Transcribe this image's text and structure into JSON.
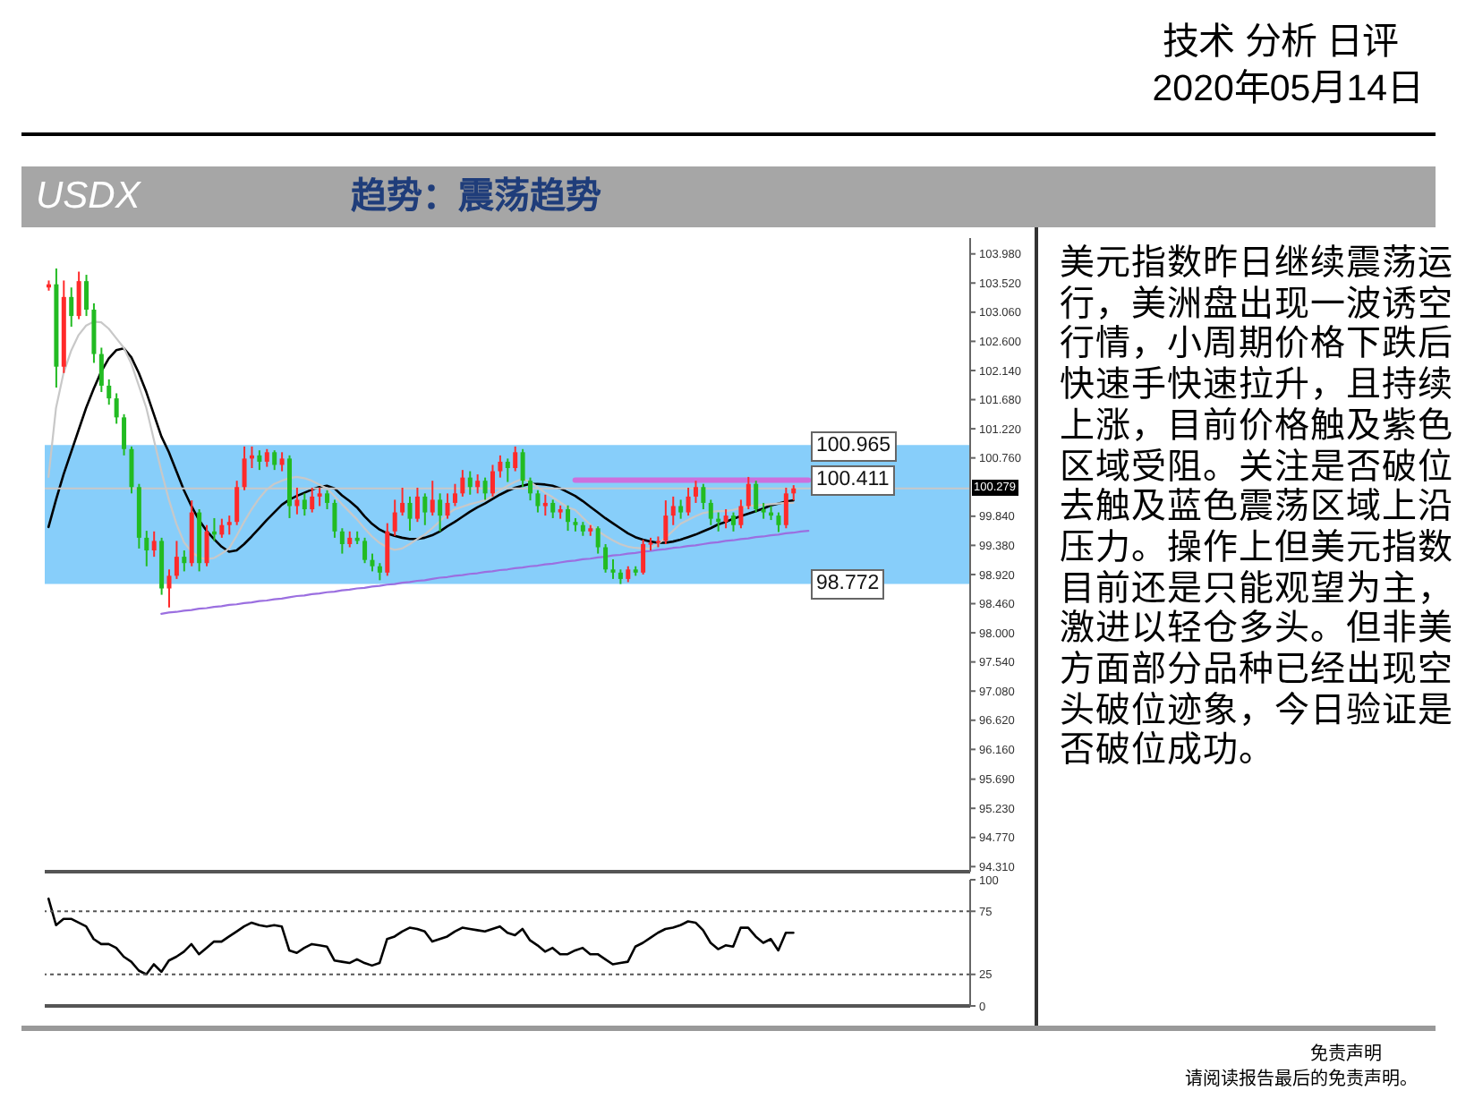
{
  "chart_data": [
    {
      "type": "candlestick",
      "title": "USDX",
      "subtitle": "趋势：震荡趋势",
      "categories": [
        null,
        null,
        null,
        null,
        null,
        null,
        null,
        null,
        null,
        null,
        null,
        null,
        null,
        null,
        null,
        null,
        null,
        null,
        null,
        null,
        null,
        null,
        null,
        null,
        null,
        null,
        null,
        null,
        null,
        null,
        null,
        null,
        null,
        null,
        null,
        null,
        null,
        null,
        null,
        null,
        null,
        null,
        null,
        null,
        null,
        null,
        null,
        null,
        null,
        null,
        null,
        null,
        null,
        null,
        null,
        null,
        null,
        null,
        null,
        null,
        null,
        null,
        null,
        null,
        null,
        null,
        null,
        null,
        null,
        null,
        null,
        null,
        null,
        null,
        null,
        null,
        null,
        null,
        null,
        null,
        null,
        null,
        null,
        null,
        null,
        null,
        null,
        null,
        null,
        null,
        null,
        null,
        null,
        null,
        null,
        null,
        null,
        null,
        null,
        null,
        null,
        null,
        null,
        null,
        null,
        null,
        null,
        null,
        null,
        null,
        null,
        null,
        null,
        null,
        null,
        null,
        null,
        null,
        null,
        null,
        null,
        null,
        null
      ],
      "ohlc": [
        [
          103.45,
          103.56,
          103.4,
          103.5
        ],
        [
          103.5,
          103.75,
          101.87,
          102.2
        ],
        [
          102.2,
          103.56,
          102.1,
          103.3
        ],
        [
          103.3,
          103.45,
          102.83,
          103.0
        ],
        [
          103.0,
          103.7,
          102.95,
          103.55
        ],
        [
          103.55,
          103.65,
          103.0,
          103.1
        ],
        [
          103.1,
          103.2,
          102.26,
          102.4
        ],
        [
          102.4,
          102.5,
          101.8,
          101.9
        ],
        [
          101.9,
          102.0,
          101.6,
          101.7
        ],
        [
          101.7,
          101.78,
          101.3,
          101.4
        ],
        [
          101.4,
          101.45,
          100.8,
          100.9
        ],
        [
          100.9,
          100.94,
          100.2,
          100.3
        ],
        [
          100.3,
          100.35,
          99.33,
          99.5
        ],
        [
          99.5,
          99.61,
          99.05,
          99.3
        ],
        [
          99.3,
          99.6,
          99.2,
          99.45
        ],
        [
          99.45,
          99.5,
          98.6,
          98.7
        ],
        [
          98.7,
          99.0,
          98.4,
          98.9
        ],
        [
          98.9,
          99.45,
          98.85,
          99.2
        ],
        [
          99.2,
          99.3,
          98.97,
          99.1
        ],
        [
          99.1,
          100.09,
          99.05,
          99.9
        ],
        [
          99.9,
          99.95,
          98.97,
          99.1
        ],
        [
          99.1,
          99.7,
          99.05,
          99.6
        ],
        [
          99.6,
          99.81,
          99.45,
          99.55
        ],
        [
          99.55,
          99.8,
          99.5,
          99.7
        ],
        [
          99.7,
          99.85,
          99.55,
          99.75
        ],
        [
          99.75,
          100.4,
          99.7,
          100.3
        ],
        [
          100.3,
          100.94,
          100.25,
          100.75
        ],
        [
          100.75,
          100.94,
          100.6,
          100.8
        ],
        [
          100.8,
          100.88,
          100.57,
          100.7
        ],
        [
          100.7,
          100.9,
          100.62,
          100.85
        ],
        [
          100.85,
          100.88,
          100.57,
          100.65
        ],
        [
          100.65,
          100.85,
          100.55,
          100.75
        ],
        [
          100.75,
          100.8,
          99.81,
          100.0
        ],
        [
          100.0,
          100.29,
          99.87,
          100.1
        ],
        [
          100.1,
          100.2,
          99.85,
          99.95
        ],
        [
          99.95,
          100.29,
          99.9,
          100.15
        ],
        [
          100.15,
          100.29,
          100.0,
          100.2
        ],
        [
          100.2,
          100.25,
          99.95,
          100.05
        ],
        [
          100.05,
          100.1,
          99.5,
          99.6
        ],
        [
          99.6,
          99.65,
          99.25,
          99.4
        ],
        [
          99.4,
          99.6,
          99.35,
          99.5
        ],
        [
          99.5,
          99.6,
          99.4,
          99.45
        ],
        [
          99.45,
          99.5,
          99.1,
          99.15
        ],
        [
          99.15,
          99.25,
          98.97,
          99.05
        ],
        [
          99.05,
          99.1,
          98.83,
          98.95
        ],
        [
          98.95,
          99.73,
          98.9,
          99.6
        ],
        [
          99.6,
          100.1,
          99.53,
          99.9
        ],
        [
          99.9,
          100.29,
          99.85,
          100.05
        ],
        [
          100.05,
          100.15,
          99.61,
          99.8
        ],
        [
          99.8,
          100.29,
          99.75,
          100.15
        ],
        [
          100.15,
          100.2,
          99.7,
          99.9
        ],
        [
          99.9,
          100.4,
          99.85,
          100.1
        ],
        [
          100.1,
          100.2,
          99.6,
          99.85
        ],
        [
          99.85,
          100.2,
          99.8,
          100.05
        ],
        [
          100.05,
          100.35,
          100.0,
          100.2
        ],
        [
          100.2,
          100.57,
          100.15,
          100.45
        ],
        [
          100.45,
          100.55,
          100.18,
          100.3
        ],
        [
          100.3,
          100.5,
          100.2,
          100.4
        ],
        [
          100.4,
          100.45,
          100.1,
          100.2
        ],
        [
          100.2,
          100.65,
          100.15,
          100.55
        ],
        [
          100.55,
          100.8,
          100.45,
          100.7
        ],
        [
          100.7,
          100.75,
          100.38,
          100.6
        ],
        [
          100.6,
          100.94,
          100.55,
          100.85
        ],
        [
          100.85,
          100.9,
          100.3,
          100.4
        ],
        [
          100.4,
          100.45,
          100.09,
          100.2
        ],
        [
          100.2,
          100.25,
          99.9,
          100.0
        ],
        [
          100.0,
          100.18,
          99.85,
          100.05
        ],
        [
          100.05,
          100.1,
          99.81,
          99.9
        ],
        [
          99.9,
          100.01,
          99.8,
          99.95
        ],
        [
          99.95,
          100.01,
          99.61,
          99.75
        ],
        [
          99.75,
          99.81,
          99.6,
          99.7
        ],
        [
          99.7,
          99.75,
          99.53,
          99.6
        ],
        [
          99.6,
          99.7,
          99.53,
          99.65
        ],
        [
          99.65,
          99.68,
          99.25,
          99.35
        ],
        [
          99.35,
          99.4,
          98.95,
          99.0
        ],
        [
          99.0,
          99.16,
          98.85,
          98.95
        ],
        [
          98.95,
          99.0,
          98.77,
          98.85
        ],
        [
          98.85,
          99.05,
          98.8,
          99.0
        ],
        [
          99.0,
          99.05,
          98.9,
          98.95
        ],
        [
          98.95,
          99.47,
          98.92,
          99.4
        ],
        [
          99.4,
          99.5,
          99.3,
          99.42
        ],
        [
          99.42,
          99.52,
          99.35,
          99.45
        ],
        [
          99.45,
          100.09,
          99.4,
          99.85
        ],
        [
          99.85,
          100.15,
          99.7,
          100.0
        ],
        [
          100.0,
          100.1,
          99.8,
          99.9
        ],
        [
          99.9,
          100.29,
          99.85,
          100.15
        ],
        [
          100.15,
          100.4,
          100.05,
          100.3
        ],
        [
          100.3,
          100.35,
          99.95,
          100.05
        ],
        [
          100.05,
          100.1,
          99.7,
          99.8
        ],
        [
          99.8,
          99.9,
          99.6,
          99.75
        ],
        [
          99.75,
          99.95,
          99.65,
          99.85
        ],
        [
          99.85,
          99.9,
          99.6,
          99.7
        ],
        [
          99.7,
          100.1,
          99.65,
          100.0
        ],
        [
          100.0,
          100.46,
          99.95,
          100.35
        ],
        [
          100.35,
          100.4,
          99.9,
          99.95
        ],
        [
          99.95,
          100.05,
          99.8,
          99.9
        ],
        [
          99.9,
          100.0,
          99.78,
          99.85
        ],
        [
          99.85,
          99.9,
          99.59,
          99.7
        ],
        [
          99.7,
          100.29,
          99.65,
          100.2
        ],
        [
          100.2,
          100.33,
          100.09,
          100.279
        ],
        null,
        null,
        null,
        null,
        null,
        null,
        null,
        null,
        null,
        null,
        null,
        null,
        null,
        null,
        null,
        null,
        null,
        null,
        null,
        null,
        null,
        null,
        null
      ],
      "colors": [
        "#ff2a2a",
        "#22bb22",
        "#ff2a2a",
        "#22bb22",
        "#ff2a2a",
        "#22bb22",
        "#22bb22",
        "#22bb22",
        "#22bb22",
        "#22bb22",
        "#22bb22",
        "#22bb22",
        "#22bb22",
        "#22bb22",
        "#ff2a2a",
        "#22bb22",
        "#ff2a2a",
        "#ff2a2a",
        "#22bb22",
        "#ff2a2a",
        "#22bb22",
        "#ff2a2a",
        "#22bb22",
        "#ff2a2a",
        "#ff2a2a",
        "#ff2a2a",
        "#ff2a2a",
        "#ff2a2a",
        "#22bb22",
        "#ff2a2a",
        "#22bb22",
        "#ff2a2a",
        "#22bb22",
        "#ff2a2a",
        "#22bb22",
        "#ff2a2a",
        "#ff2a2a",
        "#22bb22",
        "#22bb22",
        "#22bb22",
        "#ff2a2a",
        "#22bb22",
        "#22bb22",
        "#22bb22",
        "#22bb22",
        "#ff2a2a",
        "#ff2a2a",
        "#ff2a2a",
        "#22bb22",
        "#ff2a2a",
        "#22bb22",
        "#ff2a2a",
        "#22bb22",
        "#ff2a2a",
        "#ff2a2a",
        "#ff2a2a",
        "#22bb22",
        "#ff2a2a",
        "#22bb22",
        "#ff2a2a",
        "#ff2a2a",
        "#22bb22",
        "#ff2a2a",
        "#22bb22",
        "#22bb22",
        "#22bb22",
        "#ff2a2a",
        "#22bb22",
        "#ff2a2a",
        "#22bb22",
        "#22bb22",
        "#22bb22",
        "#ff2a2a",
        "#22bb22",
        "#22bb22",
        "#22bb22",
        "#22bb22",
        "#ff2a2a",
        "#22bb22",
        "#ff2a2a",
        "#ff2a2a",
        "#ff2a2a",
        "#ff2a2a",
        "#ff2a2a",
        "#22bb22",
        "#ff2a2a",
        "#ff2a2a",
        "#22bb22",
        "#22bb22",
        "#22bb22",
        "#ff2a2a",
        "#22bb22",
        "#ff2a2a",
        "#ff2a2a",
        "#22bb22",
        "#22bb22",
        "#22bb22",
        "#22bb22",
        "#ff2a2a",
        "#ff2a2a",
        null,
        null,
        null,
        null,
        null,
        null,
        null,
        null,
        null,
        null,
        null,
        null,
        null,
        null,
        null,
        null,
        null,
        null,
        null,
        null,
        null,
        null,
        null
      ],
      "series": [
        {
          "type": "line",
          "color": "#000000",
          "values": [
            99.67,
            100.1,
            100.5,
            100.85,
            101.2,
            101.55,
            101.85,
            102.12,
            102.33,
            102.46,
            102.49,
            102.35,
            102.1,
            101.8,
            101.45,
            101.1,
            100.85,
            100.55,
            100.25,
            100.0,
            99.78,
            99.61,
            99.48,
            99.36,
            99.28,
            99.3,
            99.4,
            99.52,
            99.65,
            99.78,
            99.9,
            100.02,
            100.1,
            100.16,
            100.21,
            100.26,
            100.3,
            100.32,
            100.28,
            100.17,
            100.08,
            99.98,
            99.84,
            99.72,
            99.63,
            99.57,
            99.53,
            99.5,
            99.48,
            99.48,
            99.5,
            99.54,
            99.6,
            99.68,
            99.75,
            99.83,
            99.91,
            99.98,
            100.04,
            100.11,
            100.18,
            100.24,
            100.29,
            100.32,
            100.35,
            100.35,
            100.34,
            100.32,
            100.28,
            100.22,
            100.16,
            100.08,
            99.99,
            99.9,
            99.81,
            99.73,
            99.65,
            99.57,
            99.51,
            99.47,
            99.44,
            99.42,
            99.42,
            99.44,
            99.47,
            99.51,
            99.55,
            99.6,
            99.65,
            99.71,
            99.75,
            99.8,
            99.84,
            99.88,
            99.92,
            99.96,
            100.01,
            100.04,
            100.07,
            100.09,
            null,
            null,
            null,
            null,
            null,
            null,
            null,
            null,
            null,
            null,
            null,
            null,
            null,
            null,
            null,
            null,
            null,
            null,
            null,
            null,
            null,
            null,
            null
          ]
        },
        {
          "type": "line",
          "color": "#c8c8c8",
          "values": [
            100.46,
            101.55,
            102.1,
            102.45,
            102.7,
            102.85,
            102.91,
            102.9,
            102.8,
            102.65,
            102.5,
            102.25,
            101.9,
            101.55,
            101.05,
            100.55,
            100.1,
            99.72,
            99.43,
            99.28,
            99.19,
            99.16,
            99.18,
            99.25,
            99.33,
            99.53,
            99.75,
            99.95,
            100.12,
            100.26,
            100.35,
            100.4,
            100.44,
            100.46,
            100.44,
            100.4,
            100.34,
            100.28,
            100.16,
            100.03,
            99.91,
            99.79,
            99.65,
            99.52,
            99.42,
            99.35,
            99.31,
            99.33,
            99.4,
            99.48,
            99.55,
            99.65,
            99.76,
            99.87,
            99.95,
            99.99,
            100.03,
            100.06,
            100.09,
            100.16,
            100.25,
            100.32,
            100.38,
            100.43,
            100.38,
            100.3,
            100.21,
            100.14,
            100.06,
            99.98,
            99.94,
            99.82,
            99.71,
            99.61,
            99.53,
            99.46,
            99.4,
            99.36,
            99.34,
            99.33,
            99.33,
            99.4,
            99.5,
            99.61,
            99.72,
            99.78,
            99.84,
            99.89,
            99.91,
            99.92,
            99.92,
            99.94,
            99.97,
            100.0,
            100.01,
            100.02,
            100.03,
            100.04,
            100.05,
            100.05,
            null,
            null,
            null,
            null,
            null,
            null,
            null,
            null,
            null,
            null,
            null,
            null,
            null,
            null,
            null,
            null,
            null,
            null,
            null,
            null,
            null,
            null,
            null
          ]
        },
        {
          "type": "line",
          "color": "#9b6fe0",
          "values": [
            null,
            null,
            null,
            null,
            null,
            null,
            null,
            null,
            null,
            null,
            null,
            null,
            null,
            null,
            null,
            98.3,
            98.32,
            98.33,
            98.35,
            98.36,
            98.38,
            98.39,
            98.41,
            98.42,
            98.44,
            98.45,
            98.47,
            98.48,
            98.5,
            98.51,
            98.53,
            98.54,
            98.56,
            98.58,
            98.59,
            98.61,
            98.62,
            98.64,
            98.65,
            98.67,
            98.68,
            98.7,
            98.71,
            98.73,
            98.74,
            98.76,
            98.77,
            98.79,
            98.8,
            98.82,
            98.83,
            98.85,
            98.87,
            98.88,
            98.9,
            98.91,
            98.93,
            98.94,
            98.96,
            98.97,
            98.99,
            99.0,
            99.02,
            99.03,
            99.05,
            99.06,
            99.08,
            99.09,
            99.11,
            99.13,
            99.14,
            99.16,
            99.17,
            99.19,
            99.2,
            99.22,
            99.23,
            99.25,
            99.26,
            99.28,
            99.29,
            99.31,
            99.32,
            99.34,
            99.35,
            99.37,
            99.38,
            99.4,
            99.42,
            99.43,
            99.45,
            99.46,
            99.48,
            99.49,
            99.51,
            99.52,
            99.54,
            99.55,
            99.57,
            99.58,
            99.6,
            99.61,
            null,
            null,
            null,
            null,
            null,
            null,
            null,
            null,
            null,
            null,
            null,
            null,
            null,
            null,
            null,
            null,
            null,
            null,
            null,
            null,
            null
          ]
        },
        {
          "type": "line",
          "color": "#cc6fdd",
          "values": [
            null,
            null,
            null,
            null,
            null,
            null,
            null,
            null,
            null,
            null,
            null,
            null,
            null,
            null,
            null,
            null,
            null,
            null,
            null,
            null,
            null,
            null,
            null,
            null,
            null,
            null,
            null,
            null,
            null,
            null,
            null,
            null,
            null,
            null,
            null,
            null,
            null,
            null,
            null,
            null,
            null,
            null,
            null,
            null,
            null,
            null,
            null,
            null,
            null,
            null,
            null,
            null,
            null,
            null,
            null,
            null,
            null,
            null,
            null,
            null,
            null,
            null,
            null,
            null,
            null,
            null,
            null,
            null,
            null,
            null,
            100.411,
            100.411,
            100.411,
            100.411,
            100.411,
            100.411,
            100.411,
            100.411,
            100.411,
            100.411,
            100.411,
            100.411,
            100.411,
            100.411,
            100.411,
            100.411,
            100.411,
            100.411,
            100.411,
            100.411,
            100.411,
            100.411,
            100.411,
            100.411,
            100.411,
            100.411,
            100.411,
            100.411,
            100.411,
            100.411,
            100.411,
            100.411,
            null,
            null,
            null,
            null,
            null,
            null,
            null,
            null,
            null,
            null,
            null,
            null,
            null,
            null,
            null,
            null,
            null,
            null,
            null,
            null,
            null
          ]
        }
      ],
      "ylim": [
        94.23,
        104.23
      ],
      "yticks": [
        {
          "value": 103.98,
          "label": "103.980"
        },
        {
          "value": 103.52,
          "label": "103.520"
        },
        {
          "value": 103.06,
          "label": "103.060"
        },
        {
          "value": 102.6,
          "label": "102.600"
        },
        {
          "value": 102.14,
          "label": "102.140"
        },
        {
          "value": 101.68,
          "label": "101.680"
        },
        {
          "value": 101.22,
          "label": "101.220"
        },
        {
          "value": 100.76,
          "label": "100.760"
        },
        {
          "value": 99.84,
          "label": "99.840"
        },
        {
          "value": 99.38,
          "label": "99.380"
        },
        {
          "value": 98.92,
          "label": "98.920"
        },
        {
          "value": 98.46,
          "label": "98.460"
        },
        {
          "value": 98,
          "label": "98.000"
        },
        {
          "value": 97.54,
          "label": "97.540"
        },
        {
          "value": 97.08,
          "label": "97.080"
        },
        {
          "value": 96.62,
          "label": "96.620"
        },
        {
          "value": 96.16,
          "label": "96.160"
        },
        {
          "value": 95.69,
          "label": "95.690"
        },
        {
          "value": 95.23,
          "label": "95.230"
        },
        {
          "value": 94.77,
          "label": "94.770"
        },
        {
          "value": 94.31,
          "label": "94.310"
        }
      ],
      "bands": [
        {
          "axis": "y",
          "from": 98.772,
          "to": 100.965,
          "color": "#87cefa"
        }
      ],
      "ref_lines": [
        {
          "axis": "y",
          "value": 100.279,
          "label": "100.279",
          "color": "#c8c8c8"
        }
      ],
      "tick_labels": "y",
      "annotations": [
        {
          "text": "100.965",
          "y": 100.965
        },
        {
          "text": "100.411",
          "y": 100.411
        },
        {
          "text": "98.772",
          "y": 98.772
        },
        "技术 分析 日评",
        "2020年05月14日",
        "免责声明",
        "请阅读报告最后的免责声明。"
      ]
    },
    {
      "type": "line",
      "categories": [
        null,
        null,
        null,
        null,
        null,
        null,
        null,
        null,
        null,
        null,
        null,
        null,
        null,
        null,
        null,
        null,
        null,
        null,
        null,
        null,
        null,
        null,
        null,
        null,
        null,
        null,
        null,
        null,
        null,
        null,
        null,
        null,
        null,
        null,
        null,
        null,
        null,
        null,
        null,
        null,
        null,
        null,
        null,
        null,
        null,
        null,
        null,
        null,
        null,
        null,
        null,
        null,
        null,
        null,
        null,
        null,
        null,
        null,
        null,
        null,
        null,
        null,
        null,
        null,
        null,
        null,
        null,
        null,
        null,
        null,
        null,
        null,
        null,
        null,
        null,
        null,
        null,
        null,
        null,
        null,
        null,
        null,
        null,
        null,
        null,
        null,
        null,
        null,
        null,
        null,
        null,
        null,
        null,
        null,
        null,
        null,
        null,
        null,
        null,
        null,
        null,
        null,
        null,
        null,
        null,
        null,
        null,
        null,
        null,
        null,
        null,
        null,
        null,
        null,
        null,
        null,
        null,
        null,
        null,
        null,
        null,
        null,
        null
      ],
      "series": [
        {
          "type": "line",
          "color": "#000000",
          "values": [
            85,
            64,
            69,
            69,
            66,
            63,
            53,
            49,
            49,
            46,
            39,
            35,
            28,
            25,
            33,
            27,
            36,
            39,
            43,
            49,
            41,
            46,
            51,
            51,
            55,
            59,
            63,
            66,
            64,
            63,
            64,
            63,
            44,
            42,
            46,
            49,
            48,
            47,
            36,
            35,
            34,
            37,
            34,
            32,
            34,
            53,
            55,
            59,
            62,
            61,
            59,
            51,
            53,
            55,
            59,
            62,
            61,
            60,
            59,
            61,
            63,
            58,
            56,
            61,
            52,
            48,
            43,
            46,
            41,
            41,
            44,
            46,
            41,
            41,
            37,
            33,
            34,
            35,
            47,
            50,
            54,
            58,
            61,
            62,
            64,
            67,
            66,
            60,
            50,
            45,
            48,
            47,
            62,
            62,
            55,
            50,
            53,
            44,
            58,
            58,
            null,
            null,
            null,
            null,
            null,
            null,
            null,
            null,
            null,
            null,
            null,
            null,
            null,
            null,
            null,
            null,
            null,
            null,
            null,
            null,
            null,
            null,
            null
          ]
        }
      ],
      "ylim": [
        0,
        100
      ],
      "yticks": [
        0,
        25,
        75,
        100
      ],
      "ref_lines": [
        {
          "axis": "y",
          "value": 75,
          "color": "#555555",
          "line_style": "dotted"
        },
        {
          "axis": "y",
          "value": 25,
          "color": "#555555",
          "line_style": "dotted"
        }
      ],
      "tick_labels": "y"
    },
    {
      "type": "other",
      "annotations": [
        "美元指数昨日继续震荡运行，美洲盘出现一波诱空行情，小周期价格下跌后快速手快速拉升，且持续上涨，目前价格触及紫色区域受阻。关注是否破位去触及蓝色震荡区域上沿压力。操作上但美元指数目前还是只能观望为主，激进以轻仓多头。但非美方面部分品种已经出现空头破位迹象，今日验证是否破位成功。"
      ]
    }
  ]
}
